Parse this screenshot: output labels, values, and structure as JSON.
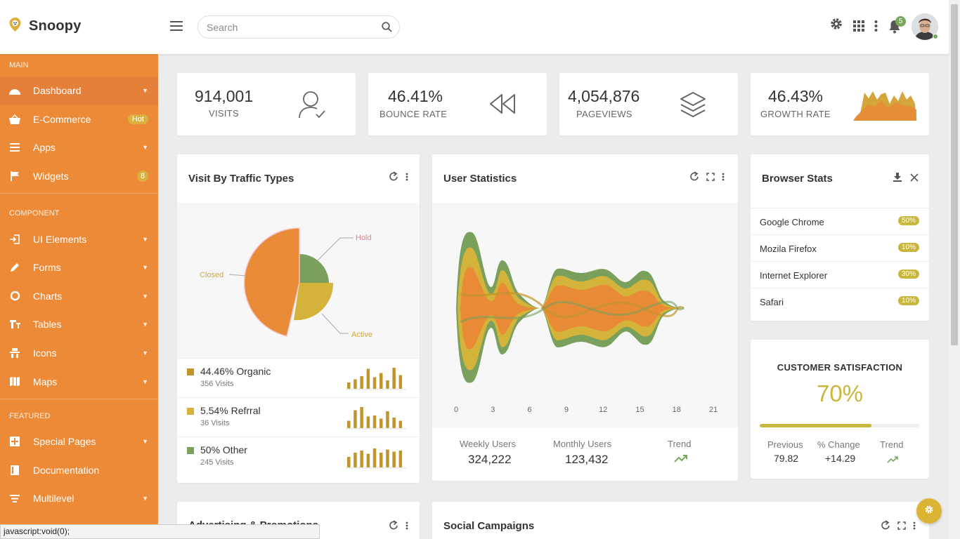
{
  "brand": {
    "name": "Snoopy"
  },
  "search": {
    "placeholder": "Search"
  },
  "header": {
    "notification_count": "5"
  },
  "sidebar": {
    "sections": [
      {
        "title": "MAIN",
        "items": [
          {
            "label": "Dashboard",
            "icon": "dashboard-icon",
            "tag": "",
            "active": true
          },
          {
            "label": "E-Commerce",
            "icon": "basket-icon",
            "tag": "Hot"
          },
          {
            "label": "Apps",
            "icon": "apps-list-icon",
            "tag": ""
          },
          {
            "label": "Widgets",
            "icon": "flag-icon",
            "tag": "8"
          }
        ]
      },
      {
        "title": "COMPONENT",
        "items": [
          {
            "label": "UI Elements",
            "icon": "login-icon"
          },
          {
            "label": "Forms",
            "icon": "pencil-icon"
          },
          {
            "label": "Charts",
            "icon": "pie-chart-icon"
          },
          {
            "label": "Tables",
            "icon": "table-icon"
          },
          {
            "label": "Icons",
            "icon": "icons-icon"
          },
          {
            "label": "Maps",
            "icon": "map-icon"
          }
        ]
      },
      {
        "title": "FEATURED",
        "items": [
          {
            "label": "Special Pages",
            "icon": "pages-icon"
          },
          {
            "label": "Documentation",
            "icon": "book-icon"
          },
          {
            "label": "Multilevel",
            "icon": "multilevel-icon"
          }
        ]
      }
    ]
  },
  "stats": [
    {
      "value": "914,001",
      "label": "VISITS",
      "icon": "user-check-icon"
    },
    {
      "value": "46.41%",
      "label": "BOUNCE RATE",
      "icon": "rewind-icon"
    },
    {
      "value": "4,054,876",
      "label": "PAGEVIEWS",
      "icon": "layers-icon"
    },
    {
      "value": "46.43%",
      "label": "GROWTH RATE",
      "icon": "area-sparkline"
    }
  ],
  "traffic": {
    "title": "Visit By Traffic Types",
    "pie_labels": {
      "hold": "Hold",
      "closed": "Closed",
      "active": "Active"
    },
    "legend": [
      {
        "title": "44.46% Organic",
        "sub": "356 Visits",
        "color": "#c0952c",
        "bars": [
          0.3,
          0.45,
          0.6,
          0.95,
          0.55,
          0.75,
          0.4,
          1.0,
          0.65
        ]
      },
      {
        "title": "5.54% Refrral",
        "sub": "36 Visits",
        "color": "#d4b33a",
        "bars": [
          0.35,
          0.85,
          1.0,
          0.55,
          0.6,
          0.45,
          0.8,
          0.5,
          0.35
        ]
      },
      {
        "title": "50% Other",
        "sub": "245 Visits",
        "color": "#79a05c",
        "bars": [
          0.5,
          0.7,
          0.8,
          0.65,
          0.9,
          0.7,
          0.85,
          0.75,
          0.8
        ]
      }
    ]
  },
  "colors": {
    "orange": "#ed8a37",
    "green": "#79a85c",
    "gold": "#d4b33a",
    "ochre": "#c0952c"
  },
  "user_stats": {
    "title": "User Statistics",
    "x_ticks": [
      "0",
      "3",
      "6",
      "9",
      "12",
      "15",
      "18",
      "21"
    ],
    "weekly_label": "Weekly Users",
    "weekly_value": "324,222",
    "monthly_label": "Monthly Users",
    "monthly_value": "123,432",
    "trend_label": "Trend"
  },
  "browser": {
    "title": "Browser Stats",
    "rows": [
      {
        "name": "Google Chrome",
        "pct": "50%"
      },
      {
        "name": "Mozila Firefox",
        "pct": "10%"
      },
      {
        "name": "Internet Explorer",
        "pct": "30%"
      },
      {
        "name": "Safari",
        "pct": "10%"
      }
    ]
  },
  "satisfaction": {
    "title": "CUSTOMER SATISFACTION",
    "value": "70%",
    "progress": 0.7,
    "previous_label": "Previous",
    "previous_value": "79.82",
    "change_label": "% Change",
    "change_value": "+14.29",
    "trend_label": "Trend"
  },
  "bottom": {
    "left_title": "Advertising & Promotions",
    "right_title": "Social Campaigns"
  },
  "statusbar": {
    "text": "javascript:void(0);"
  }
}
